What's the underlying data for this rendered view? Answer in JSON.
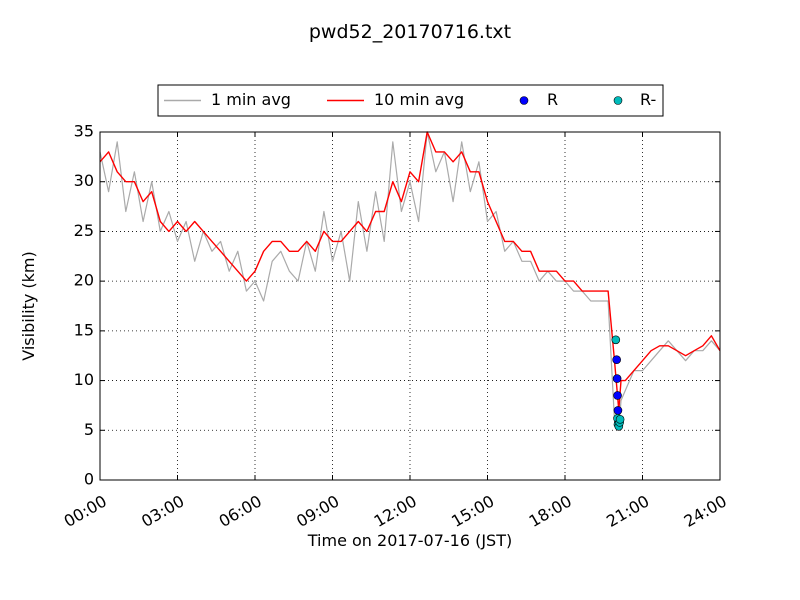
{
  "chart_data": {
    "type": "line",
    "title": "pwd52_20170716.txt",
    "xlabel": "Time on 2017-07-16 (JST)",
    "ylabel": "Visibility (km)",
    "xlim": [
      "00:00",
      "24:00"
    ],
    "ylim": [
      0,
      35
    ],
    "xticks": [
      "00:00",
      "03:00",
      "06:00",
      "09:00",
      "12:00",
      "15:00",
      "18:00",
      "21:00",
      "24:00"
    ],
    "yticks": [
      "0",
      "5",
      "10",
      "15",
      "20",
      "25",
      "30",
      "35"
    ],
    "grid": true,
    "legend_position": "top-center",
    "series": [
      {
        "name": "1 min avg",
        "style": "line",
        "color": "#aaaaaa",
        "x": [
          "00:00",
          "00:20",
          "00:40",
          "01:00",
          "01:20",
          "01:40",
          "02:00",
          "02:20",
          "02:40",
          "03:00",
          "03:20",
          "03:40",
          "04:00",
          "04:20",
          "04:40",
          "05:00",
          "05:20",
          "05:40",
          "06:00",
          "06:20",
          "06:40",
          "07:00",
          "07:20",
          "07:40",
          "08:00",
          "08:20",
          "08:40",
          "09:00",
          "09:20",
          "09:40",
          "10:00",
          "10:20",
          "10:40",
          "11:00",
          "11:20",
          "11:40",
          "12:00",
          "12:20",
          "12:40",
          "13:00",
          "13:20",
          "13:40",
          "14:00",
          "14:20",
          "14:40",
          "15:00",
          "15:20",
          "15:40",
          "16:00",
          "16:20",
          "16:40",
          "17:00",
          "17:20",
          "17:40",
          "18:00",
          "18:20",
          "18:40",
          "19:00",
          "19:20",
          "19:40",
          "19:55",
          "20:05",
          "20:10",
          "20:20",
          "20:40",
          "21:00",
          "21:20",
          "21:40",
          "22:00",
          "22:20",
          "22:40",
          "23:00",
          "23:20",
          "23:40",
          "24:00"
        ],
        "values": [
          33,
          29,
          34,
          27,
          31,
          26,
          30,
          25,
          27,
          24,
          26,
          22,
          25,
          23,
          24,
          21,
          23,
          19,
          20,
          18,
          22,
          23,
          21,
          20,
          24,
          21,
          27,
          22,
          25,
          20,
          28,
          23,
          29,
          24,
          34,
          27,
          30,
          26,
          35,
          31,
          33,
          28,
          34,
          29,
          32,
          26,
          27,
          23,
          24,
          22,
          22,
          20,
          21,
          20,
          20,
          19,
          19,
          18,
          18,
          18,
          6,
          5,
          8,
          9,
          11,
          11,
          12,
          13,
          14,
          13,
          12,
          13,
          13,
          14,
          13
        ]
      },
      {
        "name": "10 min avg",
        "style": "line",
        "color": "#ff0000",
        "x": [
          "00:00",
          "00:20",
          "00:40",
          "01:00",
          "01:20",
          "01:40",
          "02:00",
          "02:20",
          "02:40",
          "03:00",
          "03:20",
          "03:40",
          "04:00",
          "04:20",
          "04:40",
          "05:00",
          "05:20",
          "05:40",
          "06:00",
          "06:20",
          "06:40",
          "07:00",
          "07:20",
          "07:40",
          "08:00",
          "08:20",
          "08:40",
          "09:00",
          "09:20",
          "09:40",
          "10:00",
          "10:20",
          "10:40",
          "11:00",
          "11:20",
          "11:40",
          "12:00",
          "12:20",
          "12:40",
          "13:00",
          "13:20",
          "13:40",
          "14:00",
          "14:20",
          "14:40",
          "15:00",
          "15:20",
          "15:40",
          "16:00",
          "16:20",
          "16:40",
          "17:00",
          "17:20",
          "17:40",
          "18:00",
          "18:20",
          "18:40",
          "19:00",
          "19:20",
          "19:40",
          "19:55",
          "20:05",
          "20:10",
          "20:20",
          "20:40",
          "21:00",
          "21:20",
          "21:40",
          "22:00",
          "22:20",
          "22:40",
          "23:00",
          "23:20",
          "23:40",
          "24:00"
        ],
        "values": [
          32,
          33,
          31,
          30,
          30,
          28,
          29,
          26,
          25,
          26,
          25,
          26,
          25,
          24,
          23,
          22,
          21,
          20,
          21,
          23,
          24,
          24,
          23,
          23,
          24,
          23,
          25,
          24,
          24,
          25,
          26,
          25,
          27,
          27,
          30,
          28,
          31,
          30,
          35,
          33,
          33,
          32,
          33,
          31,
          31,
          28,
          26,
          24,
          24,
          23,
          23,
          21,
          21,
          21,
          20,
          20,
          19,
          19,
          19,
          19,
          12,
          7,
          10,
          10,
          11,
          12,
          13,
          13.5,
          13.5,
          13,
          12.5,
          13,
          13.5,
          14.5,
          13
        ]
      },
      {
        "name": "R",
        "style": "marker",
        "color": "#0000ff",
        "x": [
          "20:00",
          "20:01",
          "20:02",
          "20:03",
          "20:04",
          "20:05"
        ],
        "values": [
          12.1,
          10.2,
          8.5,
          7.0,
          5.8,
          5.5
        ]
      },
      {
        "name": "R-",
        "style": "marker",
        "color": "#00bbbb",
        "x": [
          "19:58",
          "20:02",
          "20:03",
          "20:05",
          "20:07",
          "20:08"
        ],
        "values": [
          14.1,
          6.2,
          5.6,
          5.4,
          5.8,
          6.1
        ]
      }
    ]
  }
}
